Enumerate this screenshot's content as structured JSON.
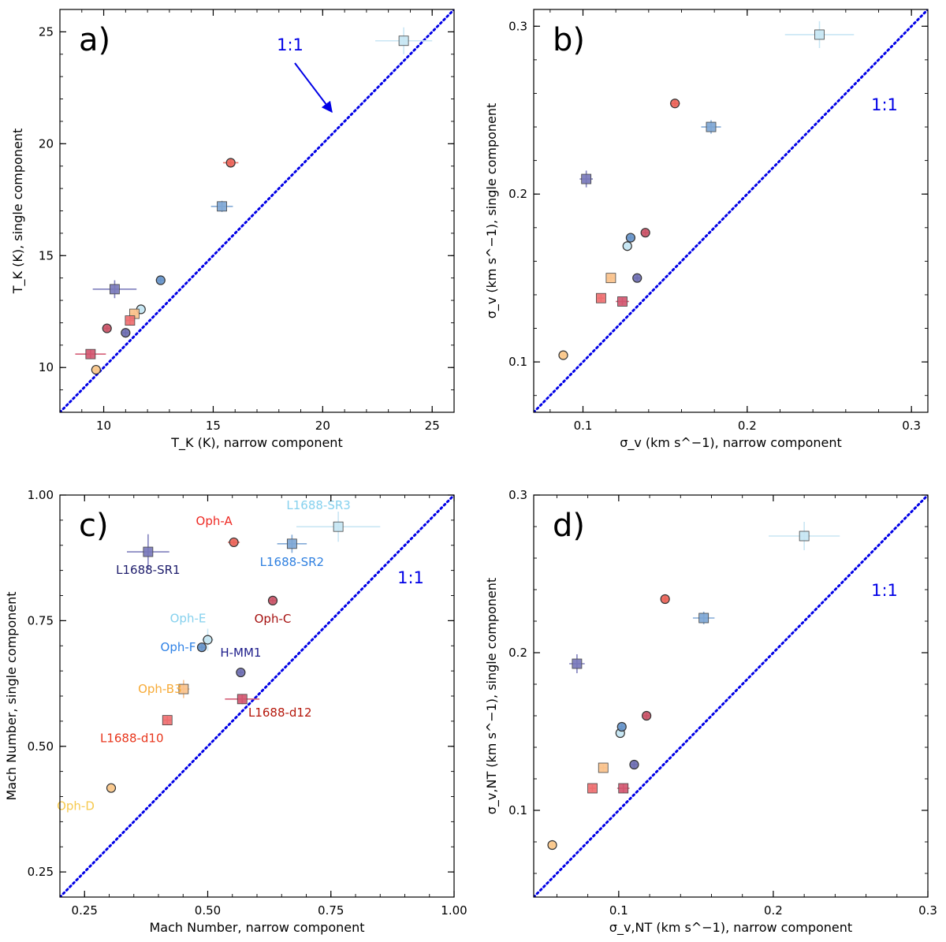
{
  "colors": {
    "one_to_one": "#0000e6",
    "Oph-A": "#e8483b",
    "Oph-C": "#c0324a",
    "Oph-E": "#b9e0f1",
    "Oph-F": "#4a7fc0",
    "Oph-B3": "#f9b26c",
    "Oph-D": "#f8bd73",
    "L1688-d10": "#e8484a",
    "L1688-d12": "#c7294a",
    "H-MM1": "#5353a3",
    "L1688-SR1": "#5555a8",
    "L1688-SR2": "#5b8fc9",
    "L1688-SR3": "#b7def0"
  },
  "label_colors": {
    "Oph-A": "#ee2a24",
    "Oph-C": "#a5100f",
    "Oph-E": "#86d1ee",
    "Oph-F": "#2f82e6",
    "Oph-B3": "#f7ab38",
    "Oph-D": "#f6c94e",
    "L1688-d10": "#e8361c",
    "L1688-d12": "#b5170b",
    "H-MM1": "#1d1c8a",
    "L1688-SR1": "#1d1c6b",
    "L1688-SR2": "#2f80e0",
    "L1688-SR3": "#86d1ee"
  },
  "chart_data": [
    {
      "type": "scatter",
      "panel_label": "a)",
      "xlabel": "T_K (K), narrow component",
      "ylabel": "T_K (K), single component",
      "xlim": [
        8,
        26
      ],
      "ylim": [
        8,
        26
      ],
      "xticks": [
        10,
        15,
        20,
        25
      ],
      "yticks": [
        10,
        15,
        20,
        25
      ],
      "tick_labels": [
        "10",
        "15",
        "20",
        "25"
      ],
      "one_to_one_label": "1:1",
      "one_to_one_arrow": true,
      "points": [
        {
          "name": "Oph-A",
          "marker": "circle",
          "x": 15.8,
          "y": 19.15,
          "xerr": 0.35,
          "yerr": 0.2
        },
        {
          "name": "Oph-C",
          "marker": "circle",
          "x": 10.15,
          "y": 11.75,
          "xerr": 0.15,
          "yerr": 0.15
        },
        {
          "name": "Oph-E",
          "marker": "circle",
          "x": 11.7,
          "y": 12.6,
          "xerr": 0.2,
          "yerr": 0.2
        },
        {
          "name": "Oph-F",
          "marker": "circle",
          "x": 12.6,
          "y": 13.9,
          "xerr": 0.2,
          "yerr": 0.15
        },
        {
          "name": "Oph-B3",
          "marker": "square",
          "x": 11.4,
          "y": 12.4,
          "xerr": 0.2,
          "yerr": 0.2
        },
        {
          "name": "Oph-D",
          "marker": "circle",
          "x": 9.65,
          "y": 9.9,
          "xerr": 0.15,
          "yerr": 0.15
        },
        {
          "name": "L1688-d10",
          "marker": "square",
          "x": 11.2,
          "y": 12.1,
          "xerr": 0.2,
          "yerr": 0.2
        },
        {
          "name": "L1688-d12",
          "marker": "square",
          "x": 9.4,
          "y": 10.6,
          "xerr": 0.7,
          "yerr": 0.2
        },
        {
          "name": "H-MM1",
          "marker": "circle",
          "x": 11.0,
          "y": 11.55,
          "xerr": 0.15,
          "yerr": 0.15
        },
        {
          "name": "L1688-SR1",
          "marker": "square",
          "x": 10.5,
          "y": 13.5,
          "xerr": 1.0,
          "yerr": 0.4
        },
        {
          "name": "L1688-SR2",
          "marker": "square",
          "x": 15.4,
          "y": 17.2,
          "xerr": 0.5,
          "yerr": 0.25
        },
        {
          "name": "L1688-SR3",
          "marker": "square",
          "x": 23.7,
          "y": 24.6,
          "xerr": 1.3,
          "yerr": 0.6
        }
      ]
    },
    {
      "type": "scatter",
      "panel_label": "b)",
      "xlabel": "σ_v (km s^−1), narrow component",
      "ylabel": "σ_v (km s^−1), single component",
      "xlim": [
        0.07,
        0.31
      ],
      "ylim": [
        0.07,
        0.31
      ],
      "xticks": [
        0.1,
        0.2,
        0.3
      ],
      "yticks": [
        0.1,
        0.2,
        0.3
      ],
      "tick_labels": [
        "0.1",
        "0.2",
        "0.3"
      ],
      "one_to_one_label": "1:1",
      "points": [
        {
          "name": "Oph-A",
          "marker": "circle",
          "x": 0.156,
          "y": 0.254,
          "xerr": 0.003,
          "yerr": 0.002
        },
        {
          "name": "Oph-C",
          "marker": "circle",
          "x": 0.138,
          "y": 0.177,
          "xerr": 0.002,
          "yerr": 0.002
        },
        {
          "name": "Oph-E",
          "marker": "circle",
          "x": 0.127,
          "y": 0.169,
          "xerr": 0.002,
          "yerr": 0.002
        },
        {
          "name": "Oph-F",
          "marker": "circle",
          "x": 0.129,
          "y": 0.174,
          "xerr": 0.002,
          "yerr": 0.002
        },
        {
          "name": "Oph-B3",
          "marker": "square",
          "x": 0.117,
          "y": 0.15,
          "xerr": 0.002,
          "yerr": 0.002
        },
        {
          "name": "Oph-D",
          "marker": "circle",
          "x": 0.088,
          "y": 0.104,
          "xerr": 0.002,
          "yerr": 0.002
        },
        {
          "name": "L1688-d10",
          "marker": "square",
          "x": 0.111,
          "y": 0.138,
          "xerr": 0.002,
          "yerr": 0.002
        },
        {
          "name": "L1688-d12",
          "marker": "square",
          "x": 0.124,
          "y": 0.136,
          "xerr": 0.004,
          "yerr": 0.002
        },
        {
          "name": "H-MM1",
          "marker": "circle",
          "x": 0.133,
          "y": 0.15,
          "xerr": 0.002,
          "yerr": 0.002
        },
        {
          "name": "L1688-SR1",
          "marker": "square",
          "x": 0.102,
          "y": 0.209,
          "xerr": 0.004,
          "yerr": 0.005
        },
        {
          "name": "L1688-SR2",
          "marker": "square",
          "x": 0.178,
          "y": 0.24,
          "xerr": 0.006,
          "yerr": 0.004
        },
        {
          "name": "L1688-SR3",
          "marker": "square",
          "x": 0.244,
          "y": 0.295,
          "xerr": 0.021,
          "yerr": 0.008
        }
      ]
    },
    {
      "type": "scatter",
      "panel_label": "c)",
      "xlabel": "Mach Number, narrow component",
      "ylabel": "Mach Number, single component",
      "xlim": [
        0.2,
        1.0
      ],
      "ylim": [
        0.2,
        1.0
      ],
      "xticks": [
        0.25,
        0.5,
        0.75,
        1.0
      ],
      "yticks": [
        0.25,
        0.5,
        0.75,
        1.0
      ],
      "tick_labels": [
        "0.25",
        "0.50",
        "0.75",
        "1.00"
      ],
      "one_to_one_label": "1:1",
      "points": [
        {
          "name": "Oph-A",
          "marker": "circle",
          "x": 0.553,
          "y": 0.906,
          "xerr": 0.012,
          "yerr": 0.005,
          "label": "Oph-A",
          "label_pos": "above-left"
        },
        {
          "name": "Oph-C",
          "marker": "circle",
          "x": 0.632,
          "y": 0.79,
          "xerr": 0.008,
          "yerr": 0.005,
          "label": "Oph-C",
          "label_pos": "below"
        },
        {
          "name": "Oph-E",
          "marker": "circle",
          "x": 0.5,
          "y": 0.712,
          "xerr": 0.012,
          "yerr": 0.022,
          "label": "Oph-E",
          "label_pos": "above-left"
        },
        {
          "name": "Oph-F",
          "marker": "circle",
          "x": 0.488,
          "y": 0.697,
          "xerr": 0.008,
          "yerr": 0.008,
          "label": "Oph-F",
          "label_pos": "left"
        },
        {
          "name": "Oph-B3",
          "marker": "square",
          "x": 0.451,
          "y": 0.614,
          "xerr": 0.012,
          "yerr": 0.018,
          "label": "Oph-B3",
          "label_pos": "left"
        },
        {
          "name": "Oph-D",
          "marker": "circle",
          "x": 0.304,
          "y": 0.417,
          "xerr": 0.006,
          "yerr": 0.005,
          "label": "Oph-D",
          "label_pos": "below-left"
        },
        {
          "name": "L1688-d10",
          "marker": "square",
          "x": 0.418,
          "y": 0.552,
          "xerr": 0.008,
          "yerr": 0.008,
          "label": "L1688-d10",
          "label_pos": "below-left"
        },
        {
          "name": "L1688-d12",
          "marker": "square",
          "x": 0.57,
          "y": 0.594,
          "xerr": 0.035,
          "yerr": 0.01,
          "label": "L1688-d12",
          "label_pos": "below-right"
        },
        {
          "name": "H-MM1",
          "marker": "circle",
          "x": 0.567,
          "y": 0.647,
          "xerr": 0.006,
          "yerr": 0.005,
          "label": "H-MM1",
          "label_pos": "above"
        },
        {
          "name": "L1688-SR1",
          "marker": "square",
          "x": 0.379,
          "y": 0.887,
          "xerr": 0.043,
          "yerr": 0.035,
          "label": "L1688-SR1",
          "label_pos": "below"
        },
        {
          "name": "L1688-SR2",
          "marker": "square",
          "x": 0.671,
          "y": 0.903,
          "xerr": 0.03,
          "yerr": 0.018,
          "label": "L1688-SR2",
          "label_pos": "below"
        },
        {
          "name": "L1688-SR3",
          "marker": "square",
          "x": 0.765,
          "y": 0.937,
          "xerr": 0.085,
          "yerr": 0.03,
          "label": "L1688-SR3",
          "label_pos": "above-left"
        }
      ]
    },
    {
      "type": "scatter",
      "panel_label": "d)",
      "xlabel": "σ_v,NT (km s^−1), narrow component",
      "ylabel": "σ_v,NT (km s^−1), single component",
      "xlim": [
        0.045,
        0.3
      ],
      "ylim": [
        0.045,
        0.3
      ],
      "xticks": [
        0.1,
        0.2,
        0.3
      ],
      "yticks": [
        0.1,
        0.2,
        0.3
      ],
      "tick_labels": [
        "0.1",
        "0.2",
        "0.3"
      ],
      "one_to_one_label": "1:1",
      "points": [
        {
          "name": "Oph-A",
          "marker": "circle",
          "x": 0.13,
          "y": 0.234,
          "xerr": 0.003,
          "yerr": 0.002
        },
        {
          "name": "Oph-C",
          "marker": "circle",
          "x": 0.118,
          "y": 0.16,
          "xerr": 0.002,
          "yerr": 0.002
        },
        {
          "name": "Oph-E",
          "marker": "circle",
          "x": 0.101,
          "y": 0.149,
          "xerr": 0.002,
          "yerr": 0.002
        },
        {
          "name": "Oph-F",
          "marker": "circle",
          "x": 0.102,
          "y": 0.153,
          "xerr": 0.002,
          "yerr": 0.002
        },
        {
          "name": "Oph-B3",
          "marker": "square",
          "x": 0.09,
          "y": 0.127,
          "xerr": 0.002,
          "yerr": 0.002
        },
        {
          "name": "Oph-D",
          "marker": "circle",
          "x": 0.057,
          "y": 0.078,
          "xerr": 0.002,
          "yerr": 0.002
        },
        {
          "name": "L1688-d10",
          "marker": "square",
          "x": 0.083,
          "y": 0.114,
          "xerr": 0.002,
          "yerr": 0.002
        },
        {
          "name": "L1688-d12",
          "marker": "square",
          "x": 0.103,
          "y": 0.114,
          "xerr": 0.004,
          "yerr": 0.003
        },
        {
          "name": "H-MM1",
          "marker": "circle",
          "x": 0.11,
          "y": 0.129,
          "xerr": 0.002,
          "yerr": 0.002
        },
        {
          "name": "L1688-SR1",
          "marker": "square",
          "x": 0.073,
          "y": 0.193,
          "xerr": 0.005,
          "yerr": 0.006
        },
        {
          "name": "L1688-SR2",
          "marker": "square",
          "x": 0.155,
          "y": 0.222,
          "xerr": 0.007,
          "yerr": 0.004
        },
        {
          "name": "L1688-SR3",
          "marker": "square",
          "x": 0.22,
          "y": 0.274,
          "xerr": 0.023,
          "yerr": 0.009
        }
      ]
    }
  ]
}
